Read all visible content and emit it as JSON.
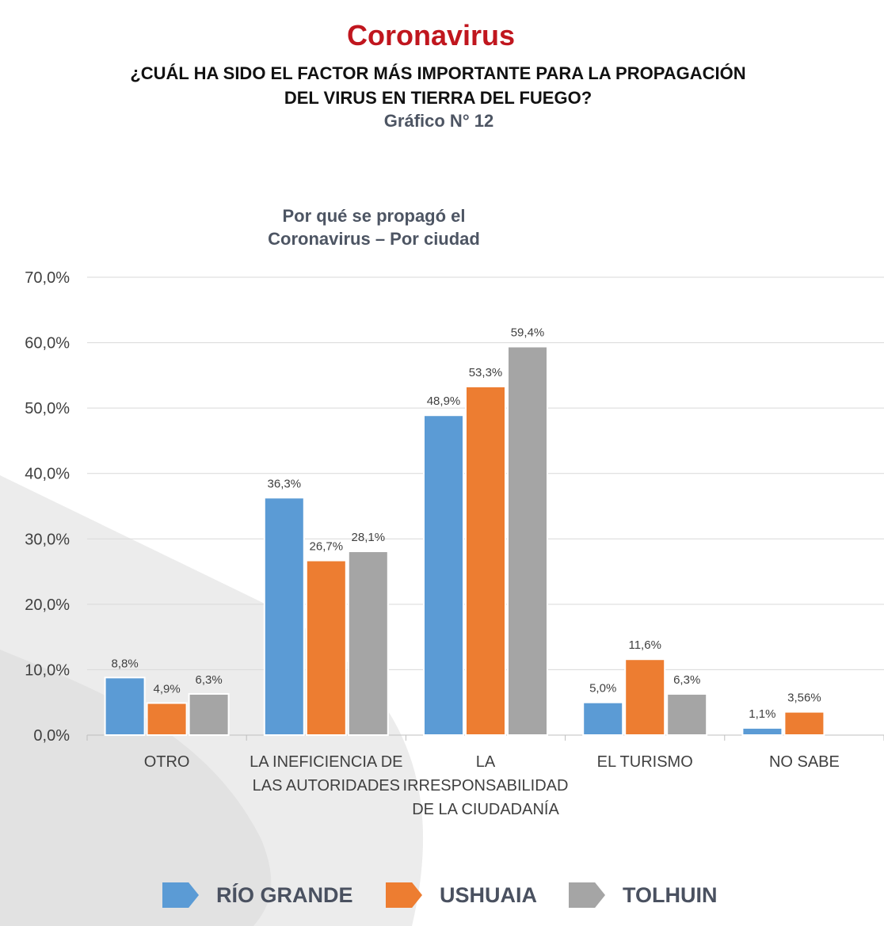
{
  "header": {
    "title": "Coronavirus",
    "question_line1": "¿CUÁL HA SIDO EL FACTOR MÁS IMPORTANTE PARA LA PROPAGACIÓN",
    "question_line2": "DEL VIRUS EN TIERRA DEL FUEGO?",
    "chart_number": "Gráfico N° 12"
  },
  "colors": {
    "title_red": "#c0161e",
    "blue": "#5b9bd5",
    "orange": "#ed7d31",
    "gray": "#a5a5a5",
    "grid": "#d9d9d9",
    "text": "#404040",
    "background_shape": "#ececec"
  },
  "chart_data": {
    "type": "bar",
    "title_line1": "Por qué se propagó el",
    "title_line2": "Coronavirus – Por ciudad",
    "categories": [
      [
        "OTRO"
      ],
      [
        "LA INEFICIENCIA DE",
        "LAS AUTORIDADES"
      ],
      [
        "LA",
        "IRRESPONSABILIDAD",
        "DE LA CIUDADANÍA"
      ],
      [
        "EL TURISMO"
      ],
      [
        "NO SABE"
      ]
    ],
    "series": [
      {
        "name": "RÍO GRANDE",
        "color": "#5b9bd5",
        "values": [
          8.8,
          36.3,
          48.9,
          5.0,
          1.1
        ],
        "labels": [
          "8,8%",
          "36,3%",
          "48,9%",
          "5,0%",
          "1,1%"
        ]
      },
      {
        "name": "USHUAIA",
        "color": "#ed7d31",
        "values": [
          4.9,
          26.7,
          53.3,
          11.6,
          3.56
        ],
        "labels": [
          "4,9%",
          "26,7%",
          "53,3%",
          "11,6%",
          "3,56%"
        ]
      },
      {
        "name": "TOLHUIN",
        "color": "#a5a5a5",
        "values": [
          6.3,
          28.1,
          59.4,
          6.3,
          null
        ],
        "labels": [
          "6,3%",
          "28,1%",
          "59,4%",
          "6,3%",
          null
        ]
      }
    ],
    "ylim": [
      0,
      70
    ],
    "yticks": [
      0,
      10,
      20,
      30,
      40,
      50,
      60,
      70
    ],
    "ytick_labels": [
      "0,0%",
      "10,0%",
      "20,0%",
      "30,0%",
      "40,0%",
      "50,0%",
      "60,0%",
      "70,0%"
    ],
    "grid": true,
    "legend_position": "bottom"
  }
}
